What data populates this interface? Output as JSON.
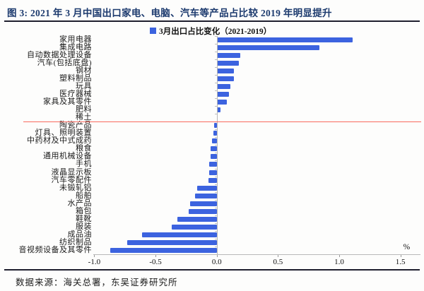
{
  "figure": {
    "title": "图 3:  2021 年 3 月中国出口家电、电脑、汽车等产品占比较 2019 年明显提升",
    "source_note": "数据来源：海关总署，东吴证券研究所"
  },
  "legend": {
    "label": "3月出口占比变化（2021-2019）"
  },
  "axis": {
    "unit_label": "%",
    "tick_labels": [
      "-1.0",
      "-0.5",
      "0.0",
      "0.5",
      "1.0",
      "1.5"
    ],
    "tick_values": [
      -1.0,
      -0.5,
      0.0,
      0.5,
      1.0,
      1.5
    ]
  },
  "colors": {
    "bar": "#3c63df",
    "title_text": "#1c3a6e",
    "rule": "#1f1f2e",
    "red_line": "#f96a5f",
    "axis_gray": "#b8b8b8"
  },
  "chart_data": {
    "type": "bar",
    "orientation": "horizontal",
    "title": "3月出口占比变化（2021-2019）",
    "xlabel": "%",
    "ylabel": "",
    "xlim": [
      -1.0,
      1.5
    ],
    "grid": false,
    "legend_position": "top",
    "highlight_rule_after_category": "稀土",
    "categories": [
      "家用电器",
      "集成电路",
      "自动数据处理设备",
      "汽车(包括底盘)",
      "钢材",
      "塑料制品",
      "玩具",
      "医疗器械",
      "家具及其零件",
      "肥料",
      "稀土",
      "陶瓷产品",
      "灯具、照明装置",
      "中药材及中式成药",
      "粮食",
      "通用机械设备",
      "手机",
      "液晶显示板",
      "汽车零配件",
      "未锻轧铝",
      "船舶",
      "水产品",
      "箱包",
      "鞋靴",
      "服装",
      "成品油",
      "纺织制品",
      "音视频设备及其零件"
    ],
    "values": [
      1.11,
      0.84,
      0.19,
      0.18,
      0.14,
      0.14,
      0.11,
      0.1,
      0.08,
      0.03,
      0.01,
      -0.02,
      -0.03,
      -0.04,
      -0.05,
      -0.05,
      -0.06,
      -0.06,
      -0.07,
      -0.16,
      -0.18,
      -0.22,
      -0.23,
      -0.32,
      -0.37,
      -0.61,
      -0.73,
      -0.87
    ]
  }
}
